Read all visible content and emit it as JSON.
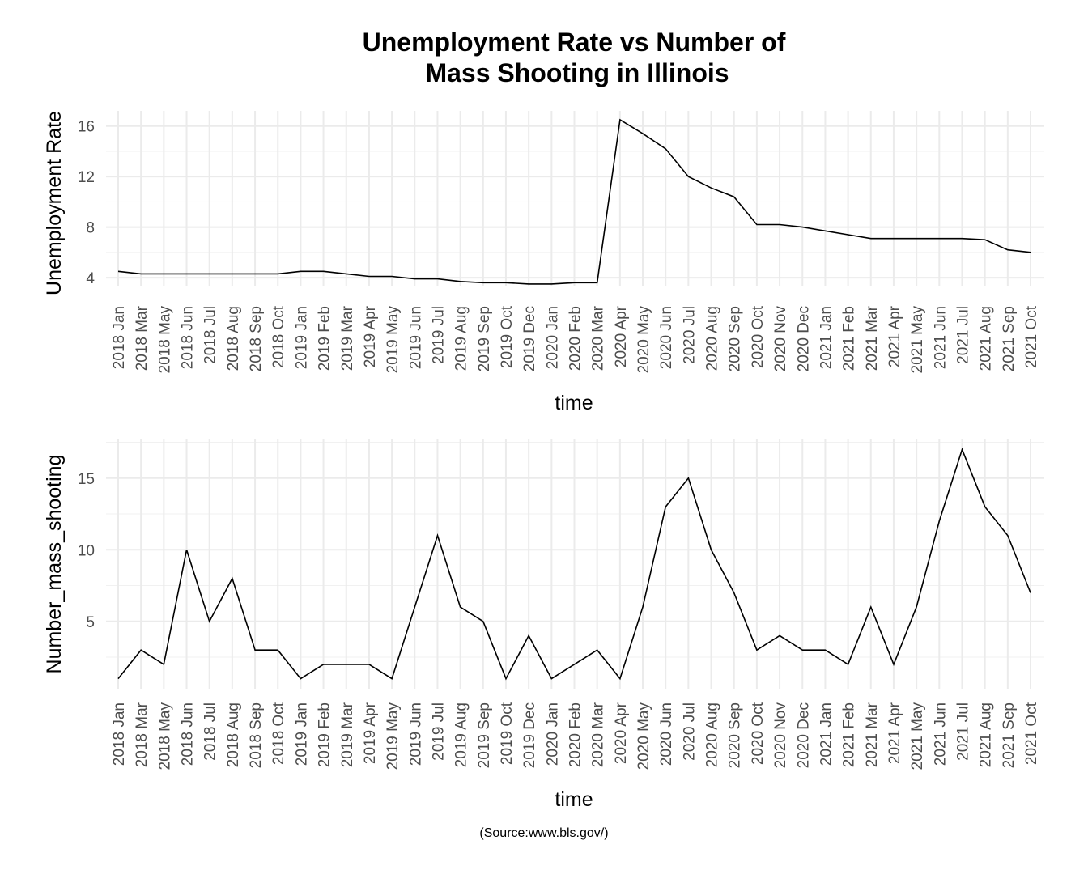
{
  "title_lines": [
    "Unemployment Rate vs Number of",
    "Mass Shooting in Illinois"
  ],
  "caption": "(Source:www.bls.gov/)",
  "chart_data": [
    {
      "type": "line",
      "xlabel": "time",
      "ylabel": "Unemployment Rate",
      "ylim": [
        3.3,
        17.2
      ],
      "y_ticks": [
        4,
        8,
        12,
        16
      ],
      "grid": true,
      "line_color": "#000000",
      "categories": [
        "2018 Jan",
        "2018 Mar",
        "2018 May",
        "2018 Jun",
        "2018 Jul",
        "2018 Aug",
        "2018 Sep",
        "2018 Oct",
        "2019 Jan",
        "2019 Feb",
        "2019 Mar",
        "2019 Apr",
        "2019 May",
        "2019 Jun",
        "2019 Jul",
        "2019 Aug",
        "2019 Sep",
        "2019 Oct",
        "2019 Dec",
        "2020 Jan",
        "2020 Feb",
        "2020 Mar",
        "2020 Apr",
        "2020 May",
        "2020 Jun",
        "2020 Jul",
        "2020 Aug",
        "2020 Sep",
        "2020 Oct",
        "2020 Nov",
        "2020 Dec",
        "2021 Jan",
        "2021 Feb",
        "2021 Mar",
        "2021 Apr",
        "2021 May",
        "2021 Jun",
        "2021 Jul",
        "2021 Aug",
        "2021 Sep",
        "2021 Oct"
      ],
      "values": [
        4.5,
        4.3,
        4.3,
        4.3,
        4.3,
        4.3,
        4.3,
        4.3,
        4.5,
        4.5,
        4.3,
        4.1,
        4.1,
        3.9,
        3.9,
        3.7,
        3.6,
        3.6,
        3.5,
        3.5,
        3.6,
        3.6,
        16.5,
        15.4,
        14.2,
        12.0,
        11.1,
        10.4,
        8.2,
        8.2,
        8.0,
        7.7,
        7.4,
        7.1,
        7.1,
        7.1,
        7.1,
        7.1,
        7.0,
        6.2,
        6.0
      ]
    },
    {
      "type": "line",
      "xlabel": "time",
      "ylabel": "Number_mass_shooting",
      "ylim": [
        0.3,
        17.7
      ],
      "y_ticks": [
        5,
        10,
        15
      ],
      "grid": true,
      "line_color": "#000000",
      "categories": [
        "2018 Jan",
        "2018 Mar",
        "2018 May",
        "2018 Jun",
        "2018 Jul",
        "2018 Aug",
        "2018 Sep",
        "2018 Oct",
        "2019 Jan",
        "2019 Feb",
        "2019 Mar",
        "2019 Apr",
        "2019 May",
        "2019 Jun",
        "2019 Jul",
        "2019 Aug",
        "2019 Sep",
        "2019 Oct",
        "2019 Dec",
        "2020 Jan",
        "2020 Feb",
        "2020 Mar",
        "2020 Apr",
        "2020 May",
        "2020 Jun",
        "2020 Jul",
        "2020 Aug",
        "2020 Sep",
        "2020 Oct",
        "2020 Nov",
        "2020 Dec",
        "2021 Jan",
        "2021 Feb",
        "2021 Mar",
        "2021 Apr",
        "2021 May",
        "2021 Jun",
        "2021 Jul",
        "2021 Aug",
        "2021 Sep",
        "2021 Oct"
      ],
      "values": [
        1,
        3,
        2,
        10,
        5,
        8,
        3,
        3,
        1,
        2,
        2,
        2,
        1,
        6,
        11,
        6,
        5,
        1,
        4,
        1,
        2,
        3,
        1,
        6,
        13,
        15,
        10,
        7,
        3,
        4,
        3,
        3,
        2,
        6,
        2,
        6,
        12,
        17,
        13,
        11,
        7
      ]
    }
  ]
}
